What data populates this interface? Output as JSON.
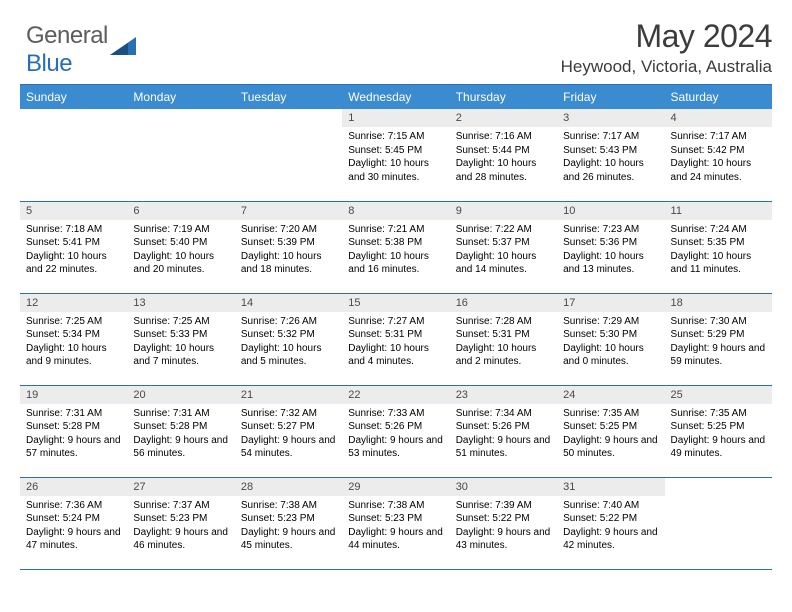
{
  "logo": {
    "part1": "General",
    "part2": "Blue"
  },
  "title": "May 2024",
  "location": "Heywood, Victoria, Australia",
  "weekdays": [
    "Sunday",
    "Monday",
    "Tuesday",
    "Wednesday",
    "Thursday",
    "Friday",
    "Saturday"
  ],
  "colors": {
    "header_bg": "#3b8bd0",
    "header_fg": "#ffffff",
    "rule": "#2a6fb5",
    "daynum_bg": "#ececec",
    "daynum_fg": "#4a4a4a",
    "logo_gray": "#5c5c5c",
    "logo_blue": "#2a6fb5",
    "title_color": "#3c3c3c",
    "body_text": "#000000"
  },
  "typography": {
    "month_title_pt": 32,
    "location_pt": 17,
    "weekday_pt": 12,
    "daynum_pt": 11,
    "detail_pt": 10
  },
  "weeks": [
    [
      null,
      null,
      null,
      {
        "n": "1",
        "sr": "Sunrise: 7:15 AM",
        "ss": "Sunset: 5:45 PM",
        "dl": "Daylight: 10 hours and 30 minutes."
      },
      {
        "n": "2",
        "sr": "Sunrise: 7:16 AM",
        "ss": "Sunset: 5:44 PM",
        "dl": "Daylight: 10 hours and 28 minutes."
      },
      {
        "n": "3",
        "sr": "Sunrise: 7:17 AM",
        "ss": "Sunset: 5:43 PM",
        "dl": "Daylight: 10 hours and 26 minutes."
      },
      {
        "n": "4",
        "sr": "Sunrise: 7:17 AM",
        "ss": "Sunset: 5:42 PM",
        "dl": "Daylight: 10 hours and 24 minutes."
      }
    ],
    [
      {
        "n": "5",
        "sr": "Sunrise: 7:18 AM",
        "ss": "Sunset: 5:41 PM",
        "dl": "Daylight: 10 hours and 22 minutes."
      },
      {
        "n": "6",
        "sr": "Sunrise: 7:19 AM",
        "ss": "Sunset: 5:40 PM",
        "dl": "Daylight: 10 hours and 20 minutes."
      },
      {
        "n": "7",
        "sr": "Sunrise: 7:20 AM",
        "ss": "Sunset: 5:39 PM",
        "dl": "Daylight: 10 hours and 18 minutes."
      },
      {
        "n": "8",
        "sr": "Sunrise: 7:21 AM",
        "ss": "Sunset: 5:38 PM",
        "dl": "Daylight: 10 hours and 16 minutes."
      },
      {
        "n": "9",
        "sr": "Sunrise: 7:22 AM",
        "ss": "Sunset: 5:37 PM",
        "dl": "Daylight: 10 hours and 14 minutes."
      },
      {
        "n": "10",
        "sr": "Sunrise: 7:23 AM",
        "ss": "Sunset: 5:36 PM",
        "dl": "Daylight: 10 hours and 13 minutes."
      },
      {
        "n": "11",
        "sr": "Sunrise: 7:24 AM",
        "ss": "Sunset: 5:35 PM",
        "dl": "Daylight: 10 hours and 11 minutes."
      }
    ],
    [
      {
        "n": "12",
        "sr": "Sunrise: 7:25 AM",
        "ss": "Sunset: 5:34 PM",
        "dl": "Daylight: 10 hours and 9 minutes."
      },
      {
        "n": "13",
        "sr": "Sunrise: 7:25 AM",
        "ss": "Sunset: 5:33 PM",
        "dl": "Daylight: 10 hours and 7 minutes."
      },
      {
        "n": "14",
        "sr": "Sunrise: 7:26 AM",
        "ss": "Sunset: 5:32 PM",
        "dl": "Daylight: 10 hours and 5 minutes."
      },
      {
        "n": "15",
        "sr": "Sunrise: 7:27 AM",
        "ss": "Sunset: 5:31 PM",
        "dl": "Daylight: 10 hours and 4 minutes."
      },
      {
        "n": "16",
        "sr": "Sunrise: 7:28 AM",
        "ss": "Sunset: 5:31 PM",
        "dl": "Daylight: 10 hours and 2 minutes."
      },
      {
        "n": "17",
        "sr": "Sunrise: 7:29 AM",
        "ss": "Sunset: 5:30 PM",
        "dl": "Daylight: 10 hours and 0 minutes."
      },
      {
        "n": "18",
        "sr": "Sunrise: 7:30 AM",
        "ss": "Sunset: 5:29 PM",
        "dl": "Daylight: 9 hours and 59 minutes."
      }
    ],
    [
      {
        "n": "19",
        "sr": "Sunrise: 7:31 AM",
        "ss": "Sunset: 5:28 PM",
        "dl": "Daylight: 9 hours and 57 minutes."
      },
      {
        "n": "20",
        "sr": "Sunrise: 7:31 AM",
        "ss": "Sunset: 5:28 PM",
        "dl": "Daylight: 9 hours and 56 minutes."
      },
      {
        "n": "21",
        "sr": "Sunrise: 7:32 AM",
        "ss": "Sunset: 5:27 PM",
        "dl": "Daylight: 9 hours and 54 minutes."
      },
      {
        "n": "22",
        "sr": "Sunrise: 7:33 AM",
        "ss": "Sunset: 5:26 PM",
        "dl": "Daylight: 9 hours and 53 minutes."
      },
      {
        "n": "23",
        "sr": "Sunrise: 7:34 AM",
        "ss": "Sunset: 5:26 PM",
        "dl": "Daylight: 9 hours and 51 minutes."
      },
      {
        "n": "24",
        "sr": "Sunrise: 7:35 AM",
        "ss": "Sunset: 5:25 PM",
        "dl": "Daylight: 9 hours and 50 minutes."
      },
      {
        "n": "25",
        "sr": "Sunrise: 7:35 AM",
        "ss": "Sunset: 5:25 PM",
        "dl": "Daylight: 9 hours and 49 minutes."
      }
    ],
    [
      {
        "n": "26",
        "sr": "Sunrise: 7:36 AM",
        "ss": "Sunset: 5:24 PM",
        "dl": "Daylight: 9 hours and 47 minutes."
      },
      {
        "n": "27",
        "sr": "Sunrise: 7:37 AM",
        "ss": "Sunset: 5:23 PM",
        "dl": "Daylight: 9 hours and 46 minutes."
      },
      {
        "n": "28",
        "sr": "Sunrise: 7:38 AM",
        "ss": "Sunset: 5:23 PM",
        "dl": "Daylight: 9 hours and 45 minutes."
      },
      {
        "n": "29",
        "sr": "Sunrise: 7:38 AM",
        "ss": "Sunset: 5:23 PM",
        "dl": "Daylight: 9 hours and 44 minutes."
      },
      {
        "n": "30",
        "sr": "Sunrise: 7:39 AM",
        "ss": "Sunset: 5:22 PM",
        "dl": "Daylight: 9 hours and 43 minutes."
      },
      {
        "n": "31",
        "sr": "Sunrise: 7:40 AM",
        "ss": "Sunset: 5:22 PM",
        "dl": "Daylight: 9 hours and 42 minutes."
      },
      null
    ]
  ]
}
